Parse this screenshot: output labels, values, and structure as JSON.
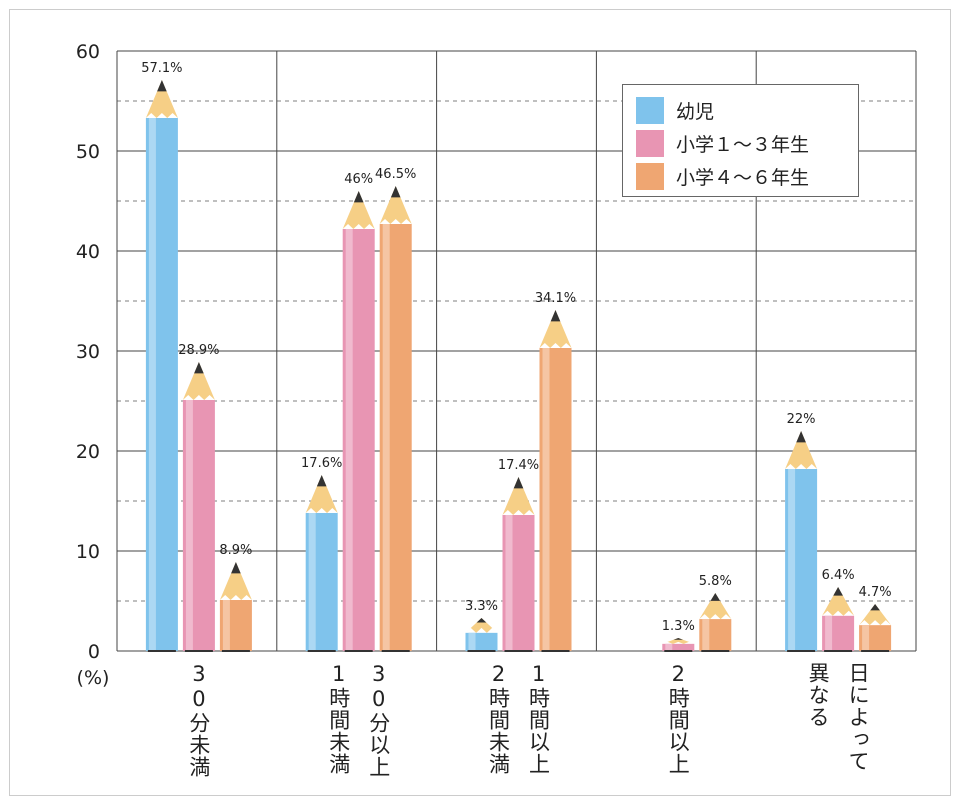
{
  "chart_data": {
    "type": "pencil-bar",
    "y_label": "(%)",
    "categories": [
      [
        "30分未満"
      ],
      [
        "30分以上",
        "1時間未満"
      ],
      [
        "1時間以上",
        "2時間未満"
      ],
      [
        "2時間以上"
      ],
      [
        "日によって",
        "異なる"
      ]
    ],
    "series": [
      {
        "name": "幼児",
        "color": "#7fc3ec",
        "values": [
          57.1,
          17.6,
          3.3,
          null,
          22
        ],
        "value_labels": [
          "57.1%",
          "17.6%",
          "3.3%",
          null,
          "22%"
        ]
      },
      {
        "name": "小学１〜３年生",
        "color": "#e895b3",
        "values": [
          28.9,
          46,
          17.4,
          1.3,
          6.4
        ],
        "value_labels": [
          "28.9%",
          "46%",
          "17.4%",
          "1.3%",
          "6.4%"
        ]
      },
      {
        "name": "小学４〜６年生",
        "color": "#efa672",
        "values": [
          8.9,
          46.5,
          34.1,
          5.8,
          4.7
        ],
        "value_labels": [
          "8.9%",
          "46.5%",
          "34.1%",
          "5.8%",
          "4.7%"
        ]
      }
    ],
    "ylim": [
      0,
      60
    ],
    "yticks": [
      0,
      10,
      20,
      30,
      40,
      50,
      60
    ],
    "minor_yticks": [
      5,
      15,
      25,
      35,
      45,
      55
    ],
    "grid": true,
    "legend": "upper right"
  }
}
